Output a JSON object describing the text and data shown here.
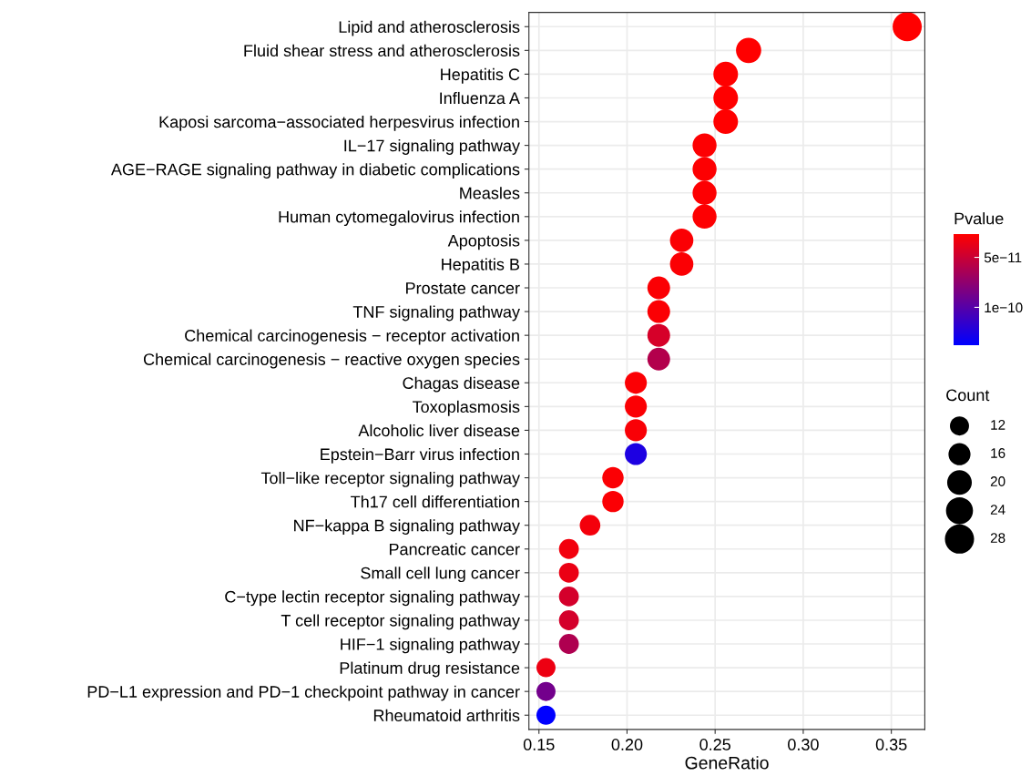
{
  "chart_data": {
    "type": "bubble",
    "xlabel": "GeneRatio",
    "clabel": "Pvalue",
    "legend_title": "Count",
    "categories": [
      "Lipid and atherosclerosis",
      "Fluid shear stress and atherosclerosis",
      "Hepatitis C",
      "Influenza A",
      "Kaposi sarcoma−associated herpesvirus infection",
      "IL−17 signaling pathway",
      "AGE−RAGE signaling pathway in diabetic complications",
      "Measles",
      "Human cytomegalovirus infection",
      "Apoptosis",
      "Hepatitis B",
      "Prostate cancer",
      "TNF signaling pathway",
      "Chemical carcinogenesis − receptor activation",
      "Chemical carcinogenesis − reactive oxygen species",
      "Chagas disease",
      "Toxoplasmosis",
      "Alcoholic liver disease",
      "Epstein−Barr virus infection",
      "Toll−like receptor signaling pathway",
      "Th17 cell differentiation",
      "NF−kappa B signaling pathway",
      "Pancreatic cancer",
      "Small cell lung cancer",
      "C−type lectin receptor signaling pathway",
      "T cell receptor signaling pathway",
      "HIF−1 signaling pathway",
      "Platinum drug resistance",
      "PD−L1 expression and PD−1 checkpoint pathway in cancer",
      "Rheumatoid arthritis"
    ],
    "values": [
      0.359,
      0.269,
      0.256,
      0.256,
      0.256,
      0.244,
      0.244,
      0.244,
      0.244,
      0.231,
      0.231,
      0.218,
      0.218,
      0.218,
      0.218,
      0.205,
      0.205,
      0.205,
      0.205,
      0.192,
      0.192,
      0.179,
      0.167,
      0.167,
      0.167,
      0.167,
      0.167,
      0.154,
      0.154,
      0.154
    ],
    "sizes": [
      28,
      21,
      20,
      20,
      20,
      19,
      19,
      19,
      19,
      18,
      18,
      17,
      17,
      17,
      17,
      16,
      16,
      16,
      16,
      15,
      15,
      14,
      13,
      13,
      13,
      13,
      13,
      12,
      12,
      12
    ],
    "cvalues": [
      2.7e-11,
      2.7e-11,
      2.7e-11,
      2.7e-11,
      2.7e-11,
      2.8e-11,
      2.8e-11,
      2.8e-11,
      2.8e-11,
      2.9e-11,
      2.9e-11,
      2.9e-11,
      2.9e-11,
      4.5e-11,
      6e-11,
      2.9e-11,
      2.9e-11,
      3e-11,
      1.25e-10,
      2.9e-11,
      2.9e-11,
      3.2e-11,
      3.3e-11,
      3.6e-11,
      4.6e-11,
      4.6e-11,
      6.2e-11,
      3.5e-11,
      8.8e-11,
      1.38e-10
    ],
    "size_legend": [
      12,
      16,
      20,
      24,
      28
    ],
    "clim": [
      1.38e-10,
      2.7e-11
    ],
    "cticks": [
      {
        "value": 5e-11,
        "label": "5e−11"
      },
      {
        "value": 1e-10,
        "label": "1e−10"
      }
    ],
    "xlim": [
      0.1443,
      0.369
    ],
    "xticks": [
      {
        "value": 0.15,
        "label": "0.15"
      },
      {
        "value": 0.2,
        "label": "0.20"
      },
      {
        "value": 0.25,
        "label": "0.25"
      },
      {
        "value": 0.3,
        "label": "0.30"
      },
      {
        "value": 0.35,
        "label": "0.35"
      }
    ],
    "orientation": "horizontal",
    "grid": true
  }
}
